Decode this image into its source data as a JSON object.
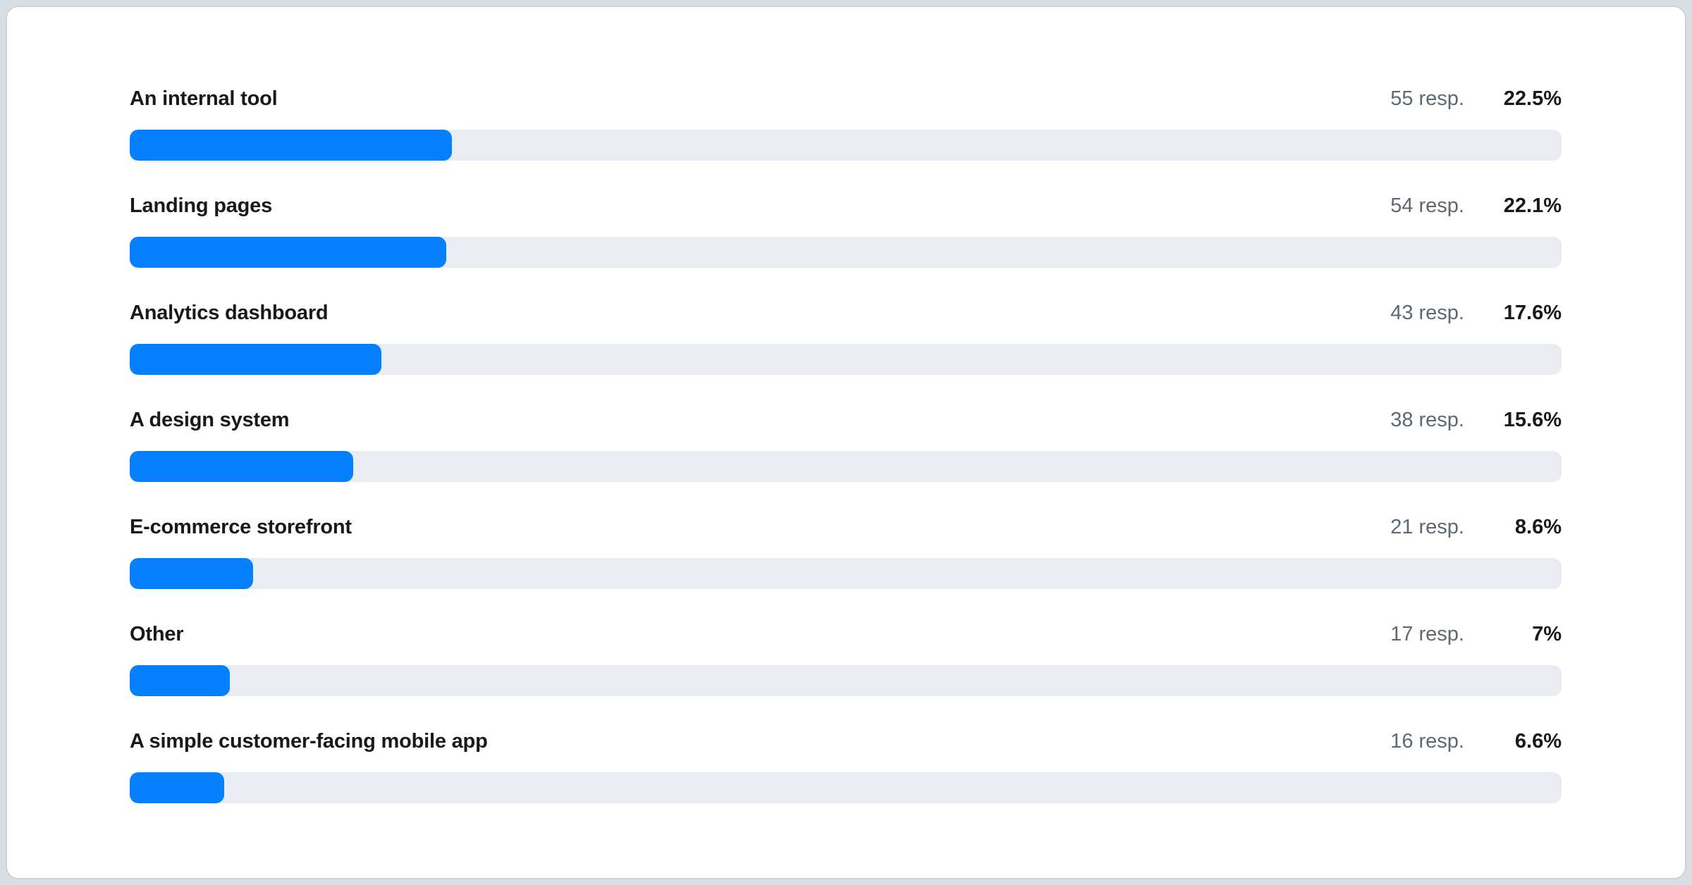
{
  "page": {
    "background_color": "#d9dee2",
    "card_background": "#ffffff",
    "card_border_color": "#ccd3d8"
  },
  "chart_data": {
    "type": "bar",
    "orientation": "horizontal",
    "title": "",
    "xlabel": "",
    "ylabel": "",
    "xlim": [
      0,
      100
    ],
    "grid": false,
    "legend": false,
    "bar_color": "#0580fe",
    "track_color": "#e9edf1",
    "categories": [
      "An internal tool",
      "Landing pages",
      "Analytics dashboard",
      "A design system",
      "E-commerce storefront",
      "Other",
      "A simple customer-facing mobile app"
    ],
    "values_pct": [
      22.5,
      22.1,
      17.6,
      15.6,
      8.6,
      7,
      6.6
    ],
    "values_responses": [
      55,
      54,
      43,
      38,
      21,
      17,
      16
    ],
    "items": [
      {
        "label": "An internal tool",
        "responses_text": "55 resp.",
        "pct_text": "22.5%",
        "pct_value": 22.5
      },
      {
        "label": "Landing pages",
        "responses_text": "54 resp.",
        "pct_text": "22.1%",
        "pct_value": 22.1
      },
      {
        "label": "Analytics dashboard",
        "responses_text": "43 resp.",
        "pct_text": "17.6%",
        "pct_value": 17.6
      },
      {
        "label": "A design system",
        "responses_text": "38 resp.",
        "pct_text": "15.6%",
        "pct_value": 15.6
      },
      {
        "label": "E-commerce storefront",
        "responses_text": "21 resp.",
        "pct_text": "8.6%",
        "pct_value": 8.6
      },
      {
        "label": "Other",
        "responses_text": "17 resp.",
        "pct_text": "7%",
        "pct_value": 7
      },
      {
        "label": "A simple customer-facing mobile app",
        "responses_text": "16 resp.",
        "pct_text": "6.6%",
        "pct_value": 6.6
      }
    ]
  }
}
